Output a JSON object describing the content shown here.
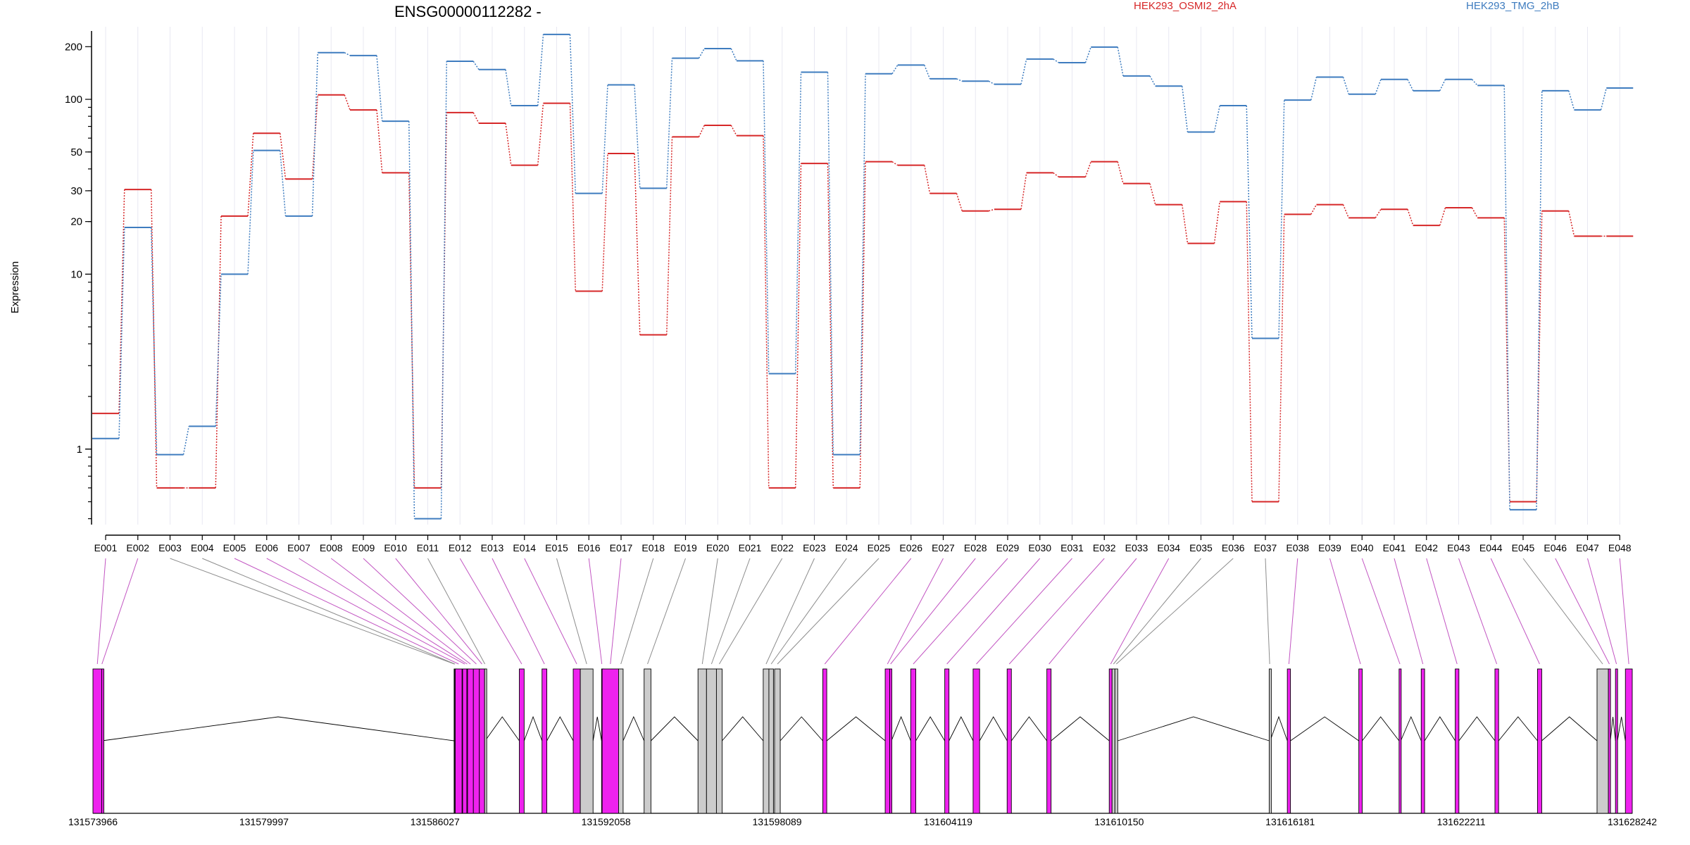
{
  "chart_data": {
    "type": "line",
    "title": "ENSG00000112282 -",
    "ylabel": "Expression",
    "xlabel": "",
    "y_scale": "log",
    "grid": "vertical",
    "legend_placement": "top-right",
    "y_ticks": [
      1,
      10,
      20,
      30,
      50,
      100,
      200
    ],
    "categories": [
      "E001",
      "E002",
      "E003",
      "E004",
      "E005",
      "E006",
      "E007",
      "E008",
      "E009",
      "E010",
      "E011",
      "E012",
      "E013",
      "E014",
      "E015",
      "E016",
      "E017",
      "E018",
      "E019",
      "E020",
      "E021",
      "E022",
      "E023",
      "E024",
      "E025",
      "E026",
      "E027",
      "E028",
      "E029",
      "E030",
      "E031",
      "E032",
      "E033",
      "E034",
      "E035",
      "E036",
      "E037",
      "E038",
      "E039",
      "E040",
      "E041",
      "E042",
      "E043",
      "E044",
      "E045",
      "E046",
      "E047",
      "E048"
    ],
    "series": [
      {
        "name": "HEK293_OSMI2_2hA",
        "color": "#d62728",
        "values": [
          1.6,
          30.5,
          0.6,
          0.6,
          21.5,
          64,
          35,
          106,
          87,
          38,
          0.6,
          84,
          73,
          42,
          95,
          8.0,
          49,
          4.5,
          61,
          71,
          62,
          0.6,
          43,
          0.6,
          44,
          42,
          29,
          23,
          23.5,
          38,
          36,
          44,
          33,
          25,
          15,
          26,
          0.5,
          22,
          25,
          21,
          23.5,
          19,
          24,
          21,
          0.5,
          23,
          16.5,
          16.5
        ]
      },
      {
        "name": "HEK293_TMG_2hB",
        "color": "#3e7cbf",
        "values": [
          1.15,
          18.5,
          0.93,
          1.35,
          10,
          51,
          21.5,
          185,
          178,
          75,
          0.4,
          165,
          148,
          92,
          235,
          29,
          121,
          31,
          172,
          195,
          166,
          2.7,
          143,
          0.93,
          140,
          157,
          131,
          127,
          122,
          170,
          162,
          199,
          136,
          119,
          65,
          92,
          4.3,
          99,
          134,
          107,
          130,
          112,
          130,
          120,
          0.45,
          112,
          87,
          116
        ]
      }
    ],
    "gene_model": {
      "coordinate_labels": [
        "131573966",
        "131579997",
        "131586027",
        "131592058",
        "131598089",
        "131604119",
        "131610150",
        "131616181",
        "131622211",
        "131628242"
      ],
      "x_range": [
        131573966,
        131628242
      ],
      "highlight_color": "#ee22ee",
      "other_color": "#cccccc",
      "exons": [
        {
          "id": "E001",
          "start": 131573966,
          "end": 131574276,
          "highlight": true
        },
        {
          "id": "E002",
          "start": 131574276,
          "end": 131574289,
          "highlight": true
        },
        {
          "id": "E003",
          "start": 131586700,
          "end": 131586720,
          "highlight": false
        },
        {
          "id": "E004",
          "start": 131586720,
          "end": 131586739,
          "highlight": false
        },
        {
          "id": "E005",
          "start": 131586739,
          "end": 131586980,
          "highlight": true
        },
        {
          "id": "E006",
          "start": 131587000,
          "end": 131587150,
          "highlight": true
        },
        {
          "id": "E007",
          "start": 131587150,
          "end": 131587174,
          "highlight": true
        },
        {
          "id": "E008",
          "start": 131587174,
          "end": 131587380,
          "highlight": true
        },
        {
          "id": "E009",
          "start": 131587380,
          "end": 131587590,
          "highlight": true
        },
        {
          "id": "E010",
          "start": 131587590,
          "end": 131587776,
          "highlight": true
        },
        {
          "id": "E011",
          "start": 131587776,
          "end": 131587795,
          "highlight": false
        },
        {
          "id": "E012",
          "start": 131589000,
          "end": 131589170,
          "highlight": true
        },
        {
          "id": "E013",
          "start": 131589800,
          "end": 131589970,
          "highlight": true
        },
        {
          "id": "E014",
          "start": 131590900,
          "end": 131591150,
          "highlight": true
        },
        {
          "id": "E015",
          "start": 131591150,
          "end": 131591600,
          "highlight": false
        },
        {
          "id": "E016",
          "start": 131591900,
          "end": 131591920,
          "highlight": true
        },
        {
          "id": "E017",
          "start": 131591920,
          "end": 131592500,
          "highlight": true
        },
        {
          "id": "E018",
          "start": 131592500,
          "end": 131592660,
          "highlight": false
        },
        {
          "id": "E019",
          "start": 131593400,
          "end": 131593640,
          "highlight": false
        },
        {
          "id": "E020",
          "start": 131595300,
          "end": 131595600,
          "highlight": false
        },
        {
          "id": "E021",
          "start": 131595600,
          "end": 131595950,
          "highlight": false
        },
        {
          "id": "E022",
          "start": 131595950,
          "end": 131596150,
          "highlight": false
        },
        {
          "id": "E023",
          "start": 131597600,
          "end": 131597800,
          "highlight": false
        },
        {
          "id": "E024",
          "start": 131597800,
          "end": 131597960,
          "highlight": false
        },
        {
          "id": "E025",
          "start": 131598000,
          "end": 131598200,
          "highlight": false
        },
        {
          "id": "E026",
          "start": 131599700,
          "end": 131599840,
          "highlight": true
        },
        {
          "id": "E027",
          "start": 131601900,
          "end": 131602060,
          "highlight": true
        },
        {
          "id": "E028",
          "start": 131602060,
          "end": 131602120,
          "highlight": true
        },
        {
          "id": "E029",
          "start": 131602800,
          "end": 131602980,
          "highlight": true
        },
        {
          "id": "E030",
          "start": 131604000,
          "end": 131604150,
          "highlight": true
        },
        {
          "id": "E031",
          "start": 131605000,
          "end": 131605230,
          "highlight": true
        },
        {
          "id": "E032",
          "start": 131606200,
          "end": 131606350,
          "highlight": true
        },
        {
          "id": "E033",
          "start": 131607600,
          "end": 131607750,
          "highlight": true
        },
        {
          "id": "E034",
          "start": 131609800,
          "end": 131609900,
          "highlight": true
        },
        {
          "id": "E035",
          "start": 131609900,
          "end": 131610000,
          "highlight": false
        },
        {
          "id": "E036",
          "start": 131610000,
          "end": 131610100,
          "highlight": false
        },
        {
          "id": "E037",
          "start": 131615440,
          "end": 131615475,
          "highlight": false
        },
        {
          "id": "E038",
          "start": 131616080,
          "end": 131616190,
          "highlight": true
        },
        {
          "id": "E039",
          "start": 131618600,
          "end": 131618720,
          "highlight": true
        },
        {
          "id": "E040",
          "start": 131620020,
          "end": 131620080,
          "highlight": true
        },
        {
          "id": "E041",
          "start": 131620800,
          "end": 131620920,
          "highlight": true
        },
        {
          "id": "E042",
          "start": 131622000,
          "end": 131622130,
          "highlight": true
        },
        {
          "id": "E043",
          "start": 131623400,
          "end": 131623530,
          "highlight": true
        },
        {
          "id": "E044",
          "start": 131624900,
          "end": 131625050,
          "highlight": true
        },
        {
          "id": "E045",
          "start": 131627000,
          "end": 131627400,
          "highlight": false
        },
        {
          "id": "E046",
          "start": 131627400,
          "end": 131627470,
          "highlight": true
        },
        {
          "id": "E047",
          "start": 131627650,
          "end": 131627720,
          "highlight": true
        },
        {
          "id": "E048",
          "start": 131628000,
          "end": 131628242,
          "highlight": true
        }
      ]
    }
  }
}
